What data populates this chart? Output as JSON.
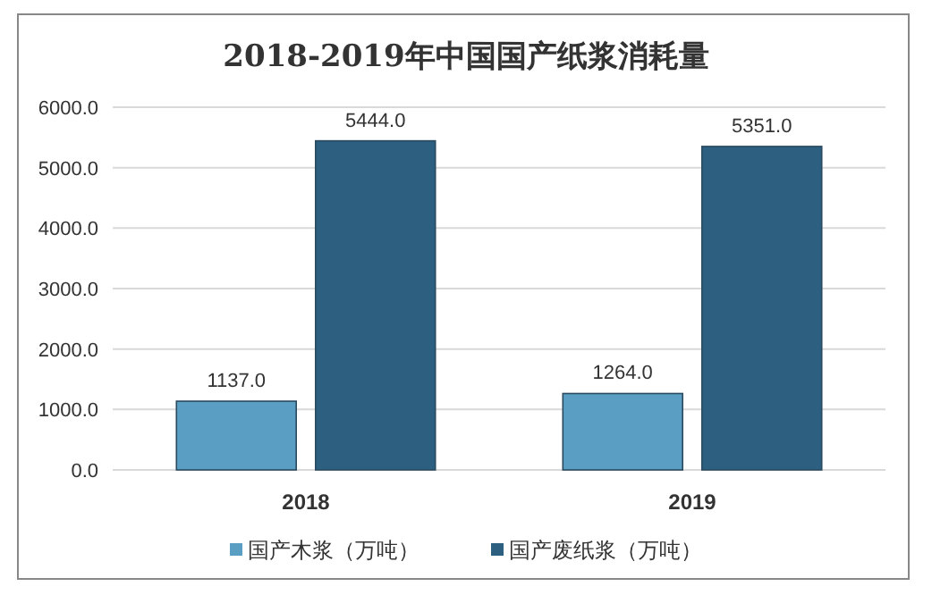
{
  "chart_data": {
    "type": "bar",
    "title": "2018-2019年中国国产纸浆消耗量",
    "categories": [
      "2018",
      "2019"
    ],
    "series": [
      {
        "name": "国产木浆（万吨）",
        "color": "#5b9ec4",
        "values": [
          1137.0,
          1264.0
        ],
        "value_labels": [
          "1137.0",
          "1264.0"
        ]
      },
      {
        "name": "国产废纸浆（万吨）",
        "color": "#2c5f80",
        "values": [
          5444.0,
          5351.0
        ],
        "value_labels": [
          "5444.0",
          "5351.0"
        ]
      }
    ],
    "ylim": [
      0,
      6000
    ],
    "yticks": [
      {
        "value": 0,
        "label": "0.0"
      },
      {
        "value": 1000,
        "label": "1000.0"
      },
      {
        "value": 2000,
        "label": "2000.0"
      },
      {
        "value": 3000,
        "label": "3000.0"
      },
      {
        "value": 4000,
        "label": "4000.0"
      },
      {
        "value": 5000,
        "label": "5000.0"
      },
      {
        "value": 6000,
        "label": "6000.0"
      }
    ],
    "grid": "y",
    "legend": "bottom"
  }
}
